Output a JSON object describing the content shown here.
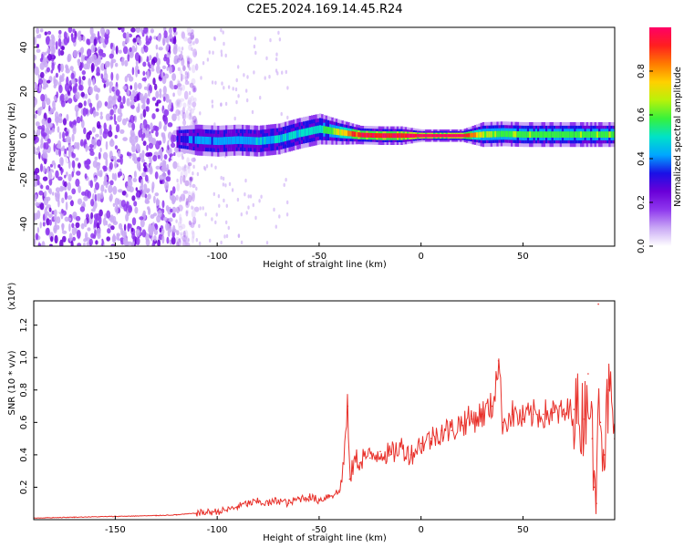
{
  "title": "C2E5.2024.169.14.45.R24",
  "colors": {
    "snr_line": "#e8302a",
    "frame": "#000000",
    "colormap": [
      "#ffffff",
      "#c9a8f5",
      "#8f38ee",
      "#6a00d8",
      "#1a10e6",
      "#00a6ff",
      "#00e2c8",
      "#37f23c",
      "#b8f20a",
      "#ffd000",
      "#ff7a00",
      "#ff1f1f",
      "#ff0066"
    ]
  },
  "chart_data": [
    {
      "type": "heatmap",
      "title": "",
      "xlabel": "Height of straight line (km)",
      "ylabel": "Frequency (Hz)",
      "xlim": [
        -190,
        95
      ],
      "ylim": [
        -50,
        49
      ],
      "xticks": [
        -150,
        -100,
        -50,
        0,
        50
      ],
      "yticks": [
        -40,
        -20,
        0,
        20,
        40
      ],
      "colorbar": {
        "label": "Normalized spectral amplitude",
        "range": [
          0.0,
          1.0
        ],
        "ticks": [
          "0.0",
          "0.2",
          "0.4",
          "0.6",
          "0.8"
        ]
      },
      "noise_region_km": [
        -190,
        -120
      ],
      "signal_band": [
        {
          "x": -120,
          "f": -1.5,
          "width": 4,
          "amp": 0.3
        },
        {
          "x": -110,
          "f": -2.0,
          "width": 5,
          "amp": 0.4
        },
        {
          "x": -100,
          "f": -2.5,
          "width": 5,
          "amp": 0.4
        },
        {
          "x": -90,
          "f": -2.0,
          "width": 5,
          "amp": 0.4
        },
        {
          "x": -80,
          "f": -2.5,
          "width": 5,
          "amp": 0.45
        },
        {
          "x": -70,
          "f": -1.5,
          "width": 5,
          "amp": 0.45
        },
        {
          "x": -60,
          "f": 1.0,
          "width": 5,
          "amp": 0.5
        },
        {
          "x": -50,
          "f": 3.0,
          "width": 5,
          "amp": 0.5
        },
        {
          "x": -40,
          "f": 1.5,
          "width": 4,
          "amp": 0.7
        },
        {
          "x": -30,
          "f": 0.3,
          "width": 3,
          "amp": 0.95
        },
        {
          "x": -20,
          "f": 0.0,
          "width": 3,
          "amp": 0.95
        },
        {
          "x": -10,
          "f": 0.0,
          "width": 3,
          "amp": 0.95
        },
        {
          "x": 0,
          "f": 0.0,
          "width": 2,
          "amp": 1.0
        },
        {
          "x": 10,
          "f": 0.0,
          "width": 2,
          "amp": 1.0
        },
        {
          "x": 20,
          "f": 0.0,
          "width": 2,
          "amp": 1.0
        },
        {
          "x": 30,
          "f": 0.5,
          "width": 4,
          "amp": 0.65
        },
        {
          "x": 40,
          "f": 0.8,
          "width": 4,
          "amp": 0.6
        },
        {
          "x": 50,
          "f": 0.5,
          "width": 4,
          "amp": 0.6
        },
        {
          "x": 60,
          "f": 0.5,
          "width": 4,
          "amp": 0.6
        },
        {
          "x": 70,
          "f": 0.5,
          "width": 4,
          "amp": 0.6
        },
        {
          "x": 80,
          "f": 0.5,
          "width": 4,
          "amp": 0.6
        },
        {
          "x": 95,
          "f": 0.5,
          "width": 4,
          "amp": 0.6
        }
      ]
    },
    {
      "type": "line",
      "title": "",
      "xlabel": "Height of straight line (km)",
      "ylabel": "SNR (10 * v/v)",
      "yscale_label": "(x10⁴)",
      "xlim": [
        -190,
        95
      ],
      "ylim": [
        0,
        1.35
      ],
      "xticks": [
        -150,
        -100,
        -50,
        0,
        50
      ],
      "yticks": [
        0.2,
        0.4,
        0.6,
        0.8,
        1.0,
        1.2
      ],
      "series": [
        {
          "x": [
            -190,
            -170,
            -150,
            -130,
            -120,
            -110,
            -100,
            -95,
            -90,
            -85,
            -80,
            -75,
            -70,
            -65,
            -60,
            -55,
            -50,
            -45,
            -40,
            -38,
            -36,
            -35,
            -34,
            -32,
            -30,
            -28,
            -25,
            -20,
            -15,
            -10,
            -5,
            0,
            5,
            10,
            15,
            20,
            25,
            30,
            35,
            38,
            40,
            45,
            50,
            55,
            60,
            65,
            70,
            75,
            80,
            82,
            84,
            85,
            86,
            87,
            88,
            90,
            92,
            95
          ],
          "values": [
            0.01,
            0.015,
            0.02,
            0.025,
            0.03,
            0.04,
            0.05,
            0.06,
            0.08,
            0.1,
            0.11,
            0.1,
            0.12,
            0.1,
            0.13,
            0.14,
            0.12,
            0.15,
            0.17,
            0.35,
            0.7,
            0.25,
            0.3,
            0.38,
            0.35,
            0.4,
            0.38,
            0.42,
            0.4,
            0.45,
            0.4,
            0.47,
            0.5,
            0.55,
            0.55,
            0.6,
            0.62,
            0.65,
            0.7,
            0.98,
            0.6,
            0.65,
            0.62,
            0.65,
            0.65,
            0.66,
            0.65,
            0.68,
            0.62,
            0.9,
            0.5,
            0.2,
            0.1,
            1.33,
            0.6,
            0.4,
            0.8,
            0.5
          ]
        }
      ]
    }
  ]
}
